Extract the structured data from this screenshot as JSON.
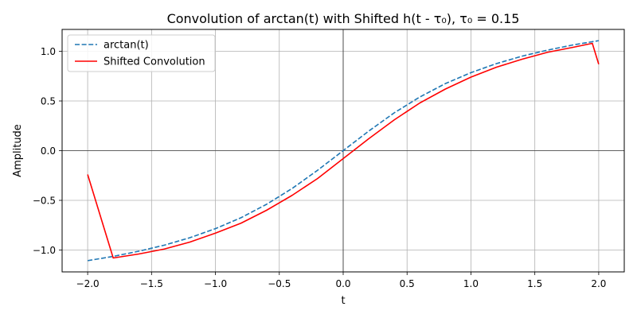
{
  "chart_data": {
    "type": "line",
    "title": "Convolution of arctan(t) with Shifted h(t - τ₀), τ₀ = 0.15",
    "xlabel": "t",
    "ylabel": "Amplitude",
    "xlim": [
      -2.2,
      2.2
    ],
    "ylim": [
      -1.22,
      1.22
    ],
    "xticks": [
      -2.0,
      -1.5,
      -1.0,
      -0.5,
      0.0,
      0.5,
      1.0,
      1.5,
      2.0
    ],
    "xtick_labels": [
      "−2.0",
      "−1.5",
      "−1.0",
      "−0.5",
      "0.0",
      "0.5",
      "1.0",
      "1.5",
      "2.0"
    ],
    "yticks": [
      -1.0,
      -0.5,
      0.0,
      0.5,
      1.0
    ],
    "ytick_labels": [
      "−1.0",
      "−0.5",
      "0.0",
      "0.5",
      "1.0"
    ],
    "grid": true,
    "zero_lines": true,
    "legend_position": "upper-left",
    "series": [
      {
        "name": "arctan(t)",
        "color": "#1f77b4",
        "style": "dashed",
        "x": [
          -2.0,
          -1.8,
          -1.6,
          -1.4,
          -1.2,
          -1.0,
          -0.8,
          -0.6,
          -0.4,
          -0.2,
          0.0,
          0.2,
          0.4,
          0.6,
          0.8,
          1.0,
          1.2,
          1.4,
          1.6,
          1.8,
          2.0
        ],
        "y": [
          -1.107,
          -1.064,
          -1.012,
          -0.951,
          -0.876,
          -0.785,
          -0.675,
          -0.54,
          -0.381,
          -0.197,
          0.0,
          0.197,
          0.381,
          0.54,
          0.675,
          0.785,
          0.876,
          0.951,
          1.012,
          1.064,
          1.107
        ]
      },
      {
        "name": "Shifted Convolution",
        "color": "#ff0000",
        "style": "solid",
        "x": [
          -2.0,
          -1.8,
          -1.6,
          -1.4,
          -1.2,
          -1.0,
          -0.8,
          -0.6,
          -0.4,
          -0.2,
          0.0,
          0.2,
          0.4,
          0.6,
          0.8,
          1.0,
          1.2,
          1.4,
          1.6,
          1.8,
          1.95,
          2.0
        ],
        "y": [
          -0.24,
          -1.08,
          -1.04,
          -0.99,
          -0.92,
          -0.83,
          -0.73,
          -0.6,
          -0.45,
          -0.28,
          -0.08,
          0.12,
          0.31,
          0.48,
          0.62,
          0.74,
          0.84,
          0.92,
          0.99,
          1.04,
          1.08,
          0.87
        ]
      }
    ]
  }
}
